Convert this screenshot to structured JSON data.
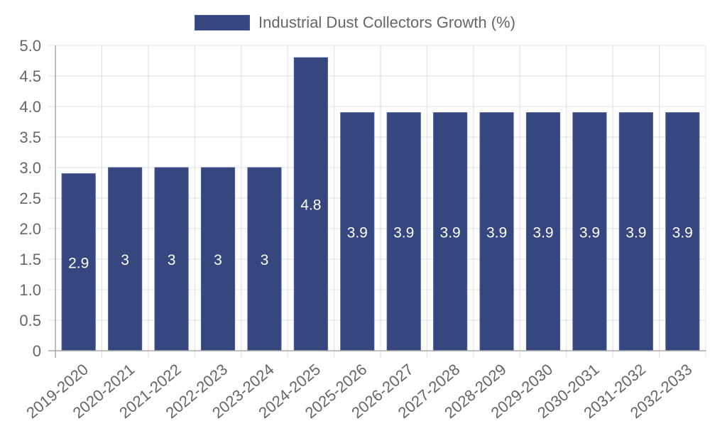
{
  "chart_data": {
    "type": "bar",
    "title": "",
    "legend": [
      "Industrial Dust Collectors Growth (%)"
    ],
    "legend_position": "top",
    "xlabel": "",
    "ylabel": "",
    "ylim": [
      0,
      5.0
    ],
    "y_ticks": [
      "0",
      "0.5",
      "1.0",
      "1.5",
      "2.0",
      "2.5",
      "3.0",
      "3.5",
      "4.0",
      "4.5",
      "5.0"
    ],
    "grid": true,
    "categories": [
      "2019-2020",
      "2020-2021",
      "2021-2022",
      "2022-2023",
      "2023-2024",
      "2024-2025",
      "2025-2026",
      "2026-2027",
      "2027-2028",
      "2028-2029",
      "2029-2030",
      "2030-2031",
      "2031-2032",
      "2032-2033"
    ],
    "series": [
      {
        "name": "Industrial Dust Collectors Growth (%)",
        "color": "#36467f",
        "values": [
          2.9,
          3,
          3,
          3,
          3,
          4.8,
          3.9,
          3.9,
          3.9,
          3.9,
          3.9,
          3.9,
          3.9,
          3.9
        ],
        "data_labels": [
          "2.9",
          "3",
          "3",
          "3",
          "3",
          "4.8",
          "3.9",
          "3.9",
          "3.9",
          "3.9",
          "3.9",
          "3.9",
          "3.9",
          "3.9"
        ]
      }
    ]
  },
  "legend": {
    "label": "Industrial Dust Collectors Growth (%)"
  }
}
